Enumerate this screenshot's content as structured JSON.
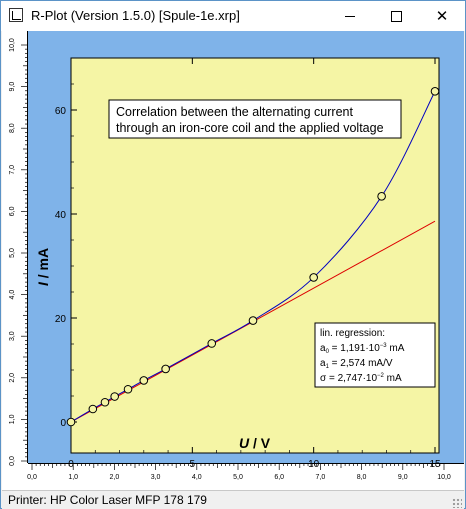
{
  "window": {
    "title": "R-Plot (Version 1.5.0) [Spule-1e.xrp]"
  },
  "statusbar": {
    "text": "Printer: HP Color Laser MFP 178 179"
  },
  "page_rulers": {
    "left_ticks": [
      "0,0",
      "1,0",
      "2,0",
      "3,0",
      "4,0",
      "5,0",
      "6,0",
      "7,0",
      "8,0",
      "9,0",
      "10,0"
    ],
    "bottom_ticks": [
      "0,0",
      "1,0",
      "2,0",
      "3,0",
      "4,0",
      "5,0",
      "6,0",
      "7,0",
      "8,0",
      "9,0",
      "10,0"
    ]
  },
  "chart_data": {
    "type": "scatter",
    "title": "",
    "annotation": {
      "line1": "Correlation between the alternating current",
      "line2": "through an iron-core  coil and the applied voltage"
    },
    "xlabel": {
      "var": "U",
      "unit": " / V"
    },
    "ylabel": {
      "var": "I",
      "unit": " / mA"
    },
    "xlim": [
      0,
      15
    ],
    "ylim": [
      0,
      70
    ],
    "xticks": [
      "0",
      "5",
      "10",
      "15"
    ],
    "yticks": [
      "0",
      "20",
      "40",
      "60"
    ],
    "grid": false,
    "x": [
      0,
      0.9,
      1.4,
      1.8,
      2.35,
      3.0,
      3.9,
      5.8,
      7.5,
      10.0,
      12.8,
      15.0
    ],
    "y": [
      0,
      2.5,
      3.8,
      4.9,
      6.3,
      8.0,
      10.2,
      15.1,
      19.5,
      27.8,
      43.4,
      63.6
    ],
    "regression": {
      "color": "#dd0000",
      "x": [
        0,
        15
      ],
      "y": [
        0.0012,
        38.61
      ]
    },
    "fit_curve_color": "#0000c0",
    "point_color": "#000000",
    "plot_background": "#f5f5a5",
    "outer_background": "#7fb3e9",
    "stats": {
      "title": "lin. regression:",
      "a0_label": "a",
      "a0_sub": "0",
      "a0_text": " = 1,191·10",
      "a0_exp": "−3",
      "a0_unit": " mA",
      "a1_label": "a",
      "a1_sub": "1",
      "a1_text": " = 2,574 mA/V",
      "sigma_text": "σ = 2,747·10",
      "sigma_exp": "−2",
      "sigma_unit": " mA"
    }
  }
}
